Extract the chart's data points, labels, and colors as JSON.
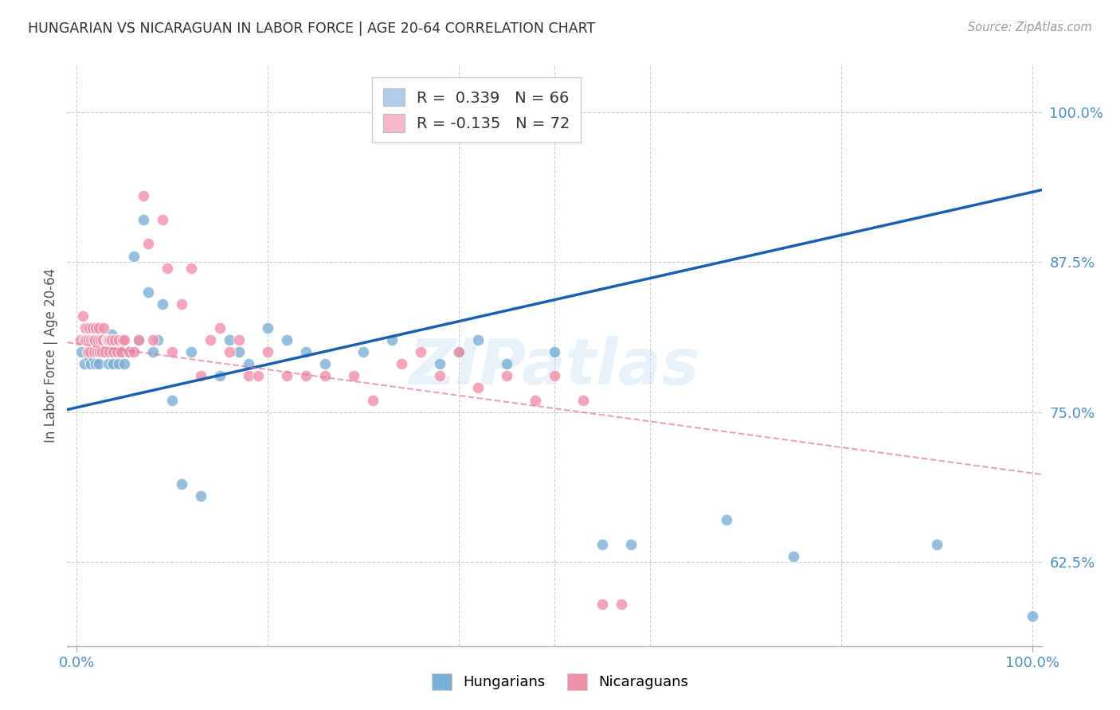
{
  "title": "HUNGARIAN VS NICARAGUAN IN LABOR FORCE | AGE 20-64 CORRELATION CHART",
  "source": "Source: ZipAtlas.com",
  "ylabel": "In Labor Force | Age 20-64",
  "xlim": [
    -0.01,
    1.01
  ],
  "ylim": [
    0.555,
    1.04
  ],
  "yticks": [
    0.625,
    0.75,
    0.875,
    1.0
  ],
  "ytick_labels": [
    "62.5%",
    "75.0%",
    "87.5%",
    "100.0%"
  ],
  "xtick_positions": [
    0.0,
    1.0
  ],
  "xtick_labels": [
    "0.0%",
    "100.0%"
  ],
  "hungarian_color": "#7bafd4",
  "nicaraguan_color": "#f090a8",
  "trend_hungarian_color": "#1a5fb0",
  "trend_nicaraguan_color": "#e07090",
  "background_color": "#ffffff",
  "grid_color": "#cccccc",
  "axis_label_color": "#4d8fc4",
  "title_color": "#303030",
  "watermark": "ZIPatlas",
  "legend_hun_color": "#b0cce8",
  "legend_nic_color": "#f4b8c8",
  "hun_trend_start": 0.752,
  "hun_trend_end": 0.935,
  "nic_trend_start": 0.808,
  "nic_trend_end": 0.698,
  "hungarian_x": [
    0.005,
    0.008,
    0.01,
    0.012,
    0.013,
    0.015,
    0.016,
    0.017,
    0.018,
    0.019,
    0.02,
    0.021,
    0.022,
    0.022,
    0.023,
    0.024,
    0.025,
    0.026,
    0.027,
    0.028,
    0.03,
    0.031,
    0.032,
    0.033,
    0.035,
    0.036,
    0.038,
    0.04,
    0.042,
    0.044,
    0.046,
    0.048,
    0.05,
    0.055,
    0.06,
    0.065,
    0.07,
    0.075,
    0.08,
    0.085,
    0.09,
    0.1,
    0.11,
    0.12,
    0.13,
    0.15,
    0.16,
    0.17,
    0.18,
    0.2,
    0.22,
    0.24,
    0.26,
    0.3,
    0.33,
    0.38,
    0.4,
    0.42,
    0.45,
    0.5,
    0.55,
    0.58,
    0.68,
    0.75,
    0.9,
    1.0
  ],
  "hungarian_y": [
    0.8,
    0.79,
    0.81,
    0.8,
    0.795,
    0.79,
    0.8,
    0.805,
    0.795,
    0.8,
    0.79,
    0.8,
    0.81,
    0.8,
    0.79,
    0.8,
    0.81,
    0.8,
    0.81,
    0.8,
    0.81,
    0.8,
    0.81,
    0.79,
    0.8,
    0.815,
    0.79,
    0.81,
    0.8,
    0.79,
    0.8,
    0.81,
    0.79,
    0.8,
    0.88,
    0.81,
    0.91,
    0.85,
    0.8,
    0.81,
    0.84,
    0.76,
    0.69,
    0.8,
    0.68,
    0.78,
    0.81,
    0.8,
    0.79,
    0.82,
    0.81,
    0.8,
    0.79,
    0.8,
    0.81,
    0.79,
    0.8,
    0.81,
    0.79,
    0.8,
    0.64,
    0.64,
    0.66,
    0.63,
    0.64,
    0.58
  ],
  "nicaraguan_x": [
    0.004,
    0.006,
    0.008,
    0.009,
    0.01,
    0.011,
    0.012,
    0.013,
    0.014,
    0.015,
    0.016,
    0.017,
    0.018,
    0.019,
    0.02,
    0.021,
    0.022,
    0.023,
    0.024,
    0.025,
    0.026,
    0.027,
    0.028,
    0.03,
    0.031,
    0.032,
    0.033,
    0.034,
    0.035,
    0.036,
    0.038,
    0.04,
    0.042,
    0.044,
    0.046,
    0.048,
    0.05,
    0.055,
    0.06,
    0.065,
    0.07,
    0.075,
    0.08,
    0.09,
    0.095,
    0.1,
    0.11,
    0.12,
    0.13,
    0.14,
    0.15,
    0.16,
    0.17,
    0.18,
    0.19,
    0.2,
    0.22,
    0.24,
    0.26,
    0.29,
    0.31,
    0.34,
    0.36,
    0.38,
    0.4,
    0.42,
    0.45,
    0.48,
    0.5,
    0.53,
    0.55,
    0.57
  ],
  "nicaraguan_y": [
    0.81,
    0.83,
    0.81,
    0.82,
    0.81,
    0.8,
    0.81,
    0.82,
    0.8,
    0.81,
    0.82,
    0.81,
    0.8,
    0.81,
    0.82,
    0.8,
    0.81,
    0.82,
    0.8,
    0.81,
    0.8,
    0.81,
    0.82,
    0.8,
    0.81,
    0.81,
    0.81,
    0.8,
    0.81,
    0.81,
    0.8,
    0.81,
    0.8,
    0.81,
    0.8,
    0.81,
    0.81,
    0.8,
    0.8,
    0.81,
    0.93,
    0.89,
    0.81,
    0.91,
    0.87,
    0.8,
    0.84,
    0.87,
    0.78,
    0.81,
    0.82,
    0.8,
    0.81,
    0.78,
    0.78,
    0.8,
    0.78,
    0.78,
    0.78,
    0.78,
    0.76,
    0.79,
    0.8,
    0.78,
    0.8,
    0.77,
    0.78,
    0.76,
    0.78,
    0.76,
    0.59,
    0.59
  ]
}
